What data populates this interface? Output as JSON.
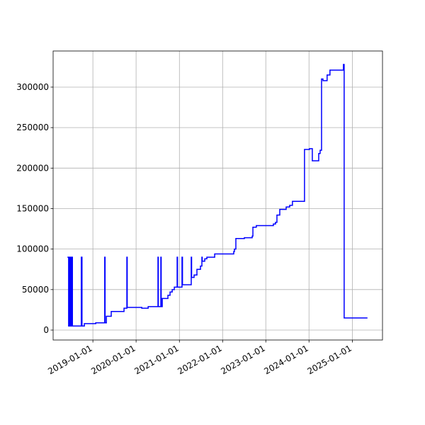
{
  "chart_data": {
    "type": "line",
    "drawstyle": "steps-post",
    "grid": true,
    "x": [
      "2018-05-31",
      "2018-06-10",
      "2018-06-12",
      "2018-06-18",
      "2018-06-24",
      "2018-07-01",
      "2018-07-06",
      "2018-07-12",
      "2018-09-25",
      "2018-10-01",
      "2018-10-21",
      "2019-01-25",
      "2019-04-11",
      "2019-04-14",
      "2019-04-25",
      "2019-06-05",
      "2019-09-21",
      "2019-10-15",
      "2019-10-18",
      "2020-02-18",
      "2020-04-12",
      "2020-07-04",
      "2020-07-07",
      "2020-07-28",
      "2020-07-31",
      "2020-08-09",
      "2020-09-26",
      "2020-10-14",
      "2020-11-01",
      "2020-11-19",
      "2020-12-13",
      "2020-12-16",
      "2021-01-23",
      "2021-01-27",
      "2021-04-11",
      "2021-04-14",
      "2021-05-05",
      "2021-05-29",
      "2021-06-28",
      "2021-07-10",
      "2021-07-13",
      "2021-08-03",
      "2021-08-21",
      "2021-10-26",
      "2022-04-05",
      "2022-04-11",
      "2022-04-23",
      "2022-07-04",
      "2022-09-08",
      "2022-09-14",
      "2022-10-13",
      "2023-03-06",
      "2023-03-24",
      "2023-04-05",
      "2023-04-29",
      "2023-06-22",
      "2023-07-22",
      "2023-08-14",
      "2023-11-24",
      "2024-01-05",
      "2024-01-29",
      "2024-03-23",
      "2024-04-04",
      "2024-04-16",
      "2024-04-28",
      "2024-06-02",
      "2024-06-26",
      "2024-10-18",
      "2024-10-24",
      "2025-05-09"
    ],
    "series": [
      {
        "color": "#0000ff",
        "values": [
          90000,
          5000,
          90000,
          5000,
          90000,
          5000,
          90000,
          5000,
          90000,
          5000,
          8000,
          9000,
          90000,
          9000,
          17000,
          23000,
          27000,
          90000,
          28000,
          27000,
          29000,
          90000,
          29000,
          90000,
          29000,
          39000,
          43000,
          47000,
          50000,
          53000,
          90000,
          53000,
          90000,
          56000,
          90000,
          65000,
          68000,
          75000,
          79000,
          90000,
          85000,
          88000,
          90000,
          94000,
          97000,
          100000,
          113000,
          114000,
          116000,
          127000,
          129000,
          131000,
          133000,
          142000,
          149000,
          152000,
          154000,
          159000,
          223000,
          224000,
          209000,
          218000,
          222000,
          310000,
          308000,
          315000,
          321000,
          328000,
          15000,
          15000
        ]
      }
    ],
    "xlim": [
      "2018-01-30",
      "2025-09-13"
    ],
    "xticks": [
      "2019-01-01",
      "2020-01-01",
      "2021-01-01",
      "2022-01-01",
      "2023-01-01",
      "2024-01-01",
      "2025-01-01"
    ],
    "ylim": [
      -12245,
      344590
    ],
    "yticks": [
      0,
      50000,
      100000,
      150000,
      200000,
      250000,
      300000
    ]
  }
}
